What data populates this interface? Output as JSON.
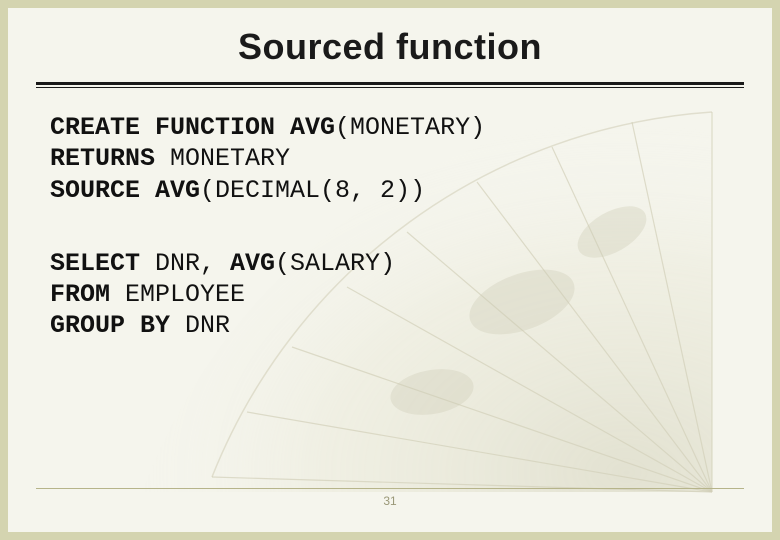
{
  "slide": {
    "title": "Sourced function",
    "page_number": "31",
    "background_color": "#d4d4b0",
    "slide_color": "#f5f5ed",
    "title_fontsize": 36,
    "code_fontsize": 25,
    "code_font": "Consolas",
    "rule_color": "#1a1a1a",
    "footer_rule_color": "#b6b48a",
    "fan": {
      "rib_color": "#a8a27a",
      "wash_color": "#c7c5a8"
    }
  },
  "code": {
    "block1": [
      {
        "pre_kw": "CREATE FUNCTION AVG",
        "rest": "(MONETARY)"
      },
      {
        "pre_kw": "RETURNS",
        "rest": " MONETARY"
      },
      {
        "pre_kw": "SOURCE AVG",
        "rest": "(DECIMAL(8, 2))"
      }
    ],
    "block2": [
      {
        "parts": [
          {
            "kw": true,
            "t": "SELECT"
          },
          {
            "kw": false,
            "t": " DNR, "
          },
          {
            "kw": true,
            "t": "AVG"
          },
          {
            "kw": false,
            "t": "(SALARY)"
          }
        ]
      },
      {
        "parts": [
          {
            "kw": true,
            "t": "FROM"
          },
          {
            "kw": false,
            "t": " EMPLOYEE"
          }
        ]
      },
      {
        "parts": [
          {
            "kw": true,
            "t": "GROUP BY"
          },
          {
            "kw": false,
            "t": " DNR"
          }
        ]
      }
    ]
  }
}
